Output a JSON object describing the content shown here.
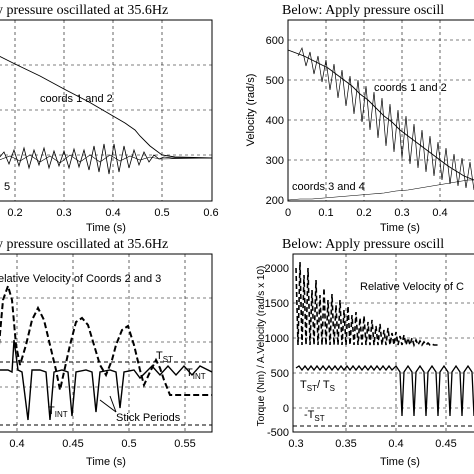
{
  "figure": {
    "charts": [
      {
        "title": "y pressure oscillated at 35.6Hz",
        "xlabel": "Time (s)",
        "ylabel": "",
        "xticks": [
          "0.2",
          "0.3",
          "0.4",
          "0.5",
          "0.6"
        ],
        "yticks": [],
        "annotations": [
          "coords 1 and 2",
          "5"
        ]
      },
      {
        "title": "Below: Apply pressure oscill",
        "xlabel": "Time (s)",
        "ylabel": "Velocity (rad/s)",
        "xticks": [
          "0",
          "0.1",
          "0.2",
          "0.3",
          "0.4"
        ],
        "yticks": [
          "600",
          "500",
          "400",
          "300",
          "200"
        ],
        "annotations": [
          "coords 1 and 2",
          "coords 3 and 4"
        ]
      },
      {
        "title": "y pressure oscillated at 35.6Hz",
        "xlabel": "Time (s)",
        "ylabel": "",
        "xticks": [
          "0.4",
          "0.45",
          "0.5",
          "0.55"
        ],
        "yticks": [],
        "annotations": [
          "elative Velocity of Coords 2 and 3",
          "T",
          "ST",
          "T",
          "INT",
          "T",
          "INT",
          "Stick Periods"
        ]
      },
      {
        "title": "Below: Apply pressure oscill",
        "xlabel": "Time (s)",
        "ylabel": "Torque (Nm) / A.Velocity (rad/s x 10)",
        "xticks": [
          "0.3",
          "0.35",
          "0.4",
          "0.45"
        ],
        "yticks": [
          "2000",
          "1500",
          "1000",
          "500",
          "0",
          "-500"
        ],
        "annotations": [
          "Relative Velocity of C",
          "T",
          "ST",
          "/ T",
          "S",
          "-T",
          "ST"
        ]
      }
    ]
  },
  "chart_data": [
    {
      "type": "line",
      "title": "y pressure oscillated at 35.6Hz",
      "xlabel": "Time (s)",
      "xlim": [
        0.165,
        0.6
      ],
      "series": [
        {
          "x": [
            0.165,
            0.2,
            0.25,
            0.3,
            0.35,
            0.4,
            0.43,
            0.45,
            0.5,
            0.6
          ],
          "y": [
            1.0,
            0.93,
            0.84,
            0.73,
            0.61,
            0.49,
            0.43,
            0.39,
            0.38,
            0.38
          ]
        },
        {
          "x": [
            0.165,
            0.2,
            0.25,
            0.3,
            0.32,
            0.35,
            0.38,
            0.42,
            0.45,
            0.5,
            0.6
          ],
          "y": [
            0.39,
            0.39,
            0.4,
            0.39,
            0.39,
            0.39,
            0.39,
            0.39,
            0.38,
            0.38,
            0.38
          ]
        }
      ]
    },
    {
      "type": "line",
      "title": "Below: Apply pressure oscill",
      "xlabel": "Time (s)",
      "ylabel": "Velocity (rad/s)",
      "xlim": [
        0,
        0.45
      ],
      "ylim": [
        200,
        650
      ],
      "series": [
        {
          "x": [
            0,
            0.05,
            0.1,
            0.15,
            0.2,
            0.25,
            0.3,
            0.35,
            0.4,
            0.45
          ],
          "y": [
            625,
            590,
            555,
            520,
            480,
            440,
            400,
            360,
            320,
            280
          ]
        },
        {
          "x": [
            0,
            0.05,
            0.1,
            0.15,
            0.2,
            0.25,
            0.3,
            0.35,
            0.4,
            0.45
          ],
          "y": [
            218,
            222,
            226,
            230,
            234,
            238,
            243,
            250,
            258,
            268
          ]
        }
      ]
    },
    {
      "type": "line",
      "title": "y pressure oscillated at 35.6Hz",
      "xlabel": "Time (s)",
      "xlim": [
        0.385,
        0.575
      ],
      "series": [
        {
          "x": [
            0.385,
            0.395,
            0.4,
            0.41,
            0.42,
            0.43,
            0.44,
            0.45,
            0.46,
            0.47,
            0.48,
            0.49,
            0.5,
            0.51,
            0.53,
            0.575
          ],
          "y": [
            0.55,
            0.8,
            0.5,
            0.75,
            0.3,
            0.7,
            0.35,
            0.65,
            0.33,
            0.6,
            0.35,
            0.55,
            0.45,
            0.4,
            0.42,
            0.42
          ]
        },
        {
          "x": [
            0.385,
            0.575
          ],
          "y": [
            0.3,
            0.3
          ]
        }
      ]
    },
    {
      "type": "line",
      "title": "Below: Apply pressure oscill",
      "xlabel": "Time (s)",
      "ylabel": "Torque (Nm) / A.Velocity (rad/s x 10)",
      "xlim": [
        0.295,
        0.475
      ],
      "ylim": [
        -500,
        2000
      ],
      "series": [
        {
          "x": [
            0.3,
            0.32,
            0.34,
            0.36,
            0.38,
            0.4,
            0.42,
            0.44,
            0.46,
            0.475
          ],
          "y": [
            1950,
            1750,
            1550,
            1350,
            1150,
            950,
            850,
            750,
            700,
            650
          ]
        },
        {
          "x": [
            0.3,
            0.475
          ],
          "y": [
            400,
            400
          ]
        },
        {
          "x": [
            0.3,
            0.475
          ],
          "y": [
            -420,
            -420
          ]
        }
      ]
    }
  ]
}
